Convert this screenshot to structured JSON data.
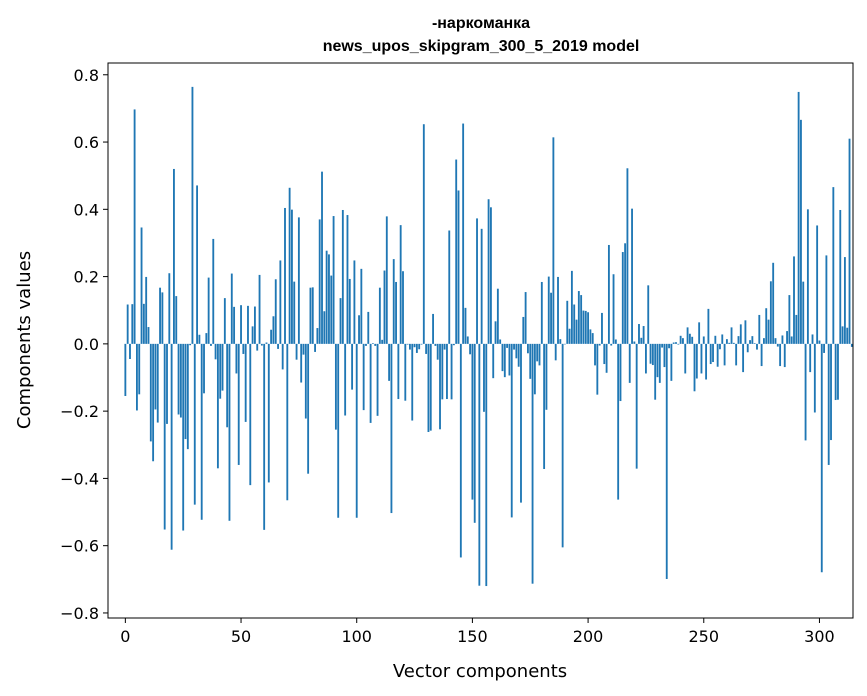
{
  "chart_data": {
    "type": "bar",
    "title": "-наркоманка",
    "subtitle": "news_upos_skipgram_300_5_2019 model",
    "xlabel": "Vector components",
    "ylabel": "Components values",
    "xlim": [
      -7.5,
      314.5
    ],
    "ylim": [
      -0.815,
      0.835
    ],
    "xticks": [
      0,
      50,
      100,
      150,
      200,
      250,
      300
    ],
    "yticks": [
      -0.8,
      -0.6,
      -0.4,
      -0.2,
      0.0,
      0.2,
      0.4,
      0.6,
      0.8
    ],
    "ytick_labels": [
      "−0.8",
      "−0.6",
      "−0.4",
      "−0.2",
      "0.0",
      "0.2",
      "0.4",
      "0.6",
      "0.8"
    ],
    "grid": false,
    "bar_color": "#1f77b4",
    "values": [
      -0.155,
      0.117,
      -0.045,
      0.118,
      0.697,
      -0.198,
      -0.15,
      0.346,
      0.119,
      0.199,
      0.05,
      -0.29,
      -0.349,
      -0.195,
      -0.234,
      0.167,
      0.153,
      -0.552,
      -0.238,
      0.21,
      -0.612,
      0.52,
      0.142,
      -0.21,
      -0.219,
      -0.555,
      -0.283,
      -0.313,
      -0.004,
      0.764,
      -0.478,
      0.471,
      0.027,
      -0.523,
      -0.147,
      0.032,
      0.197,
      -0.006,
      0.312,
      -0.046,
      -0.37,
      -0.163,
      -0.139,
      0.136,
      -0.248,
      -0.526,
      0.209,
      0.11,
      -0.088,
      -0.36,
      0.115,
      -0.03,
      -0.232,
      0.113,
      -0.42,
      0.052,
      0.111,
      -0.02,
      0.205,
      -0.005,
      -0.553,
      0.004,
      -0.412,
      0.042,
      0.082,
      0.192,
      -0.015,
      0.248,
      -0.076,
      0.404,
      -0.465,
      0.464,
      0.399,
      0.185,
      -0.047,
      0.376,
      -0.115,
      -0.032,
      -0.222,
      -0.386,
      0.167,
      0.168,
      -0.024,
      0.047,
      0.37,
      0.512,
      0.097,
      0.277,
      0.266,
      0.203,
      0.38,
      -0.255,
      -0.517,
      0.136,
      0.398,
      -0.213,
      0.383,
      0.193,
      -0.136,
      0.248,
      -0.517,
      0.085,
      0.223,
      -0.197,
      -0.006,
      0.095,
      -0.235,
      0.002,
      -0.006,
      -0.214,
      0.167,
      0.012,
      0.218,
      0.379,
      -0.11,
      -0.503,
      0.252,
      0.184,
      -0.164,
      0.353,
      0.216,
      -0.169,
      -0.002,
      -0.017,
      -0.228,
      -0.01,
      -0.027,
      -0.016,
      -0.002,
      0.653,
      -0.03,
      -0.262,
      -0.258,
      0.089,
      -0.006,
      -0.047,
      -0.254,
      -0.165,
      -0.017,
      -0.164,
      0.337,
      -0.165,
      -0.004,
      0.548,
      0.456,
      -0.635,
      0.655,
      0.107,
      0.022,
      -0.031,
      -0.463,
      -0.532,
      0.373,
      -0.719,
      0.342,
      -0.202,
      -0.72,
      0.43,
      0.406,
      -0.102,
      0.067,
      0.164,
      0.013,
      -0.081,
      -0.099,
      -0.012,
      -0.094,
      -0.516,
      -0.017,
      -0.043,
      -0.068,
      -0.472,
      0.08,
      0.154,
      -0.028,
      -0.104,
      -0.713,
      -0.15,
      -0.052,
      -0.064,
      0.184,
      -0.372,
      -0.196,
      0.2,
      0.152,
      0.614,
      -0.049,
      0.199,
      0.014,
      -0.605,
      -0.001,
      0.128,
      0.045,
      0.217,
      0.117,
      0.072,
      0.157,
      0.145,
      0.099,
      0.098,
      0.094,
      0.043,
      0.032,
      -0.064,
      -0.151,
      -0.005,
      0.092,
      -0.06,
      -0.086,
      0.294,
      -0.005,
      0.207,
      0.013,
      -0.463,
      -0.17,
      0.273,
      0.299,
      0.522,
      -0.116,
      0.402,
      0.007,
      -0.371,
      0.059,
      0.018,
      0.053,
      -0.088,
      0.174,
      -0.059,
      -0.063,
      -0.166,
      -0.099,
      -0.116,
      -0.011,
      -0.069,
      -0.699,
      -0.013,
      -0.11,
      0.004,
      0.005,
      -0.002,
      0.024,
      0.017,
      -0.088,
      0.049,
      0.03,
      0.021,
      -0.141,
      -0.103,
      0.064,
      -0.088,
      0.022,
      -0.106,
      0.104,
      -0.06,
      -0.054,
      0.024,
      -0.068,
      -0.016,
      0.028,
      -0.064,
      0.014,
      0.003,
      0.049,
      0.003,
      -0.064,
      0.023,
      0.058,
      -0.084,
      0.07,
      -0.025,
      0.011,
      0.023,
      0.002,
      -0.017,
      0.086,
      -0.066,
      0.017,
      0.106,
      0.072,
      0.186,
      0.241,
      0.017,
      -0.008,
      -0.066,
      0.025,
      -0.069,
      0.038,
      0.145,
      0.022,
      0.26,
      0.086,
      0.749,
      0.666,
      0.185,
      -0.287,
      0.4,
      -0.084,
      0.028,
      -0.204,
      0.352,
      0.01,
      -0.679,
      -0.027,
      0.263,
      -0.36,
      -0.286,
      0.466,
      -0.167,
      -0.166,
      0.398,
      0.052,
      0.258,
      0.048,
      0.61,
      -0.009
    ]
  }
}
